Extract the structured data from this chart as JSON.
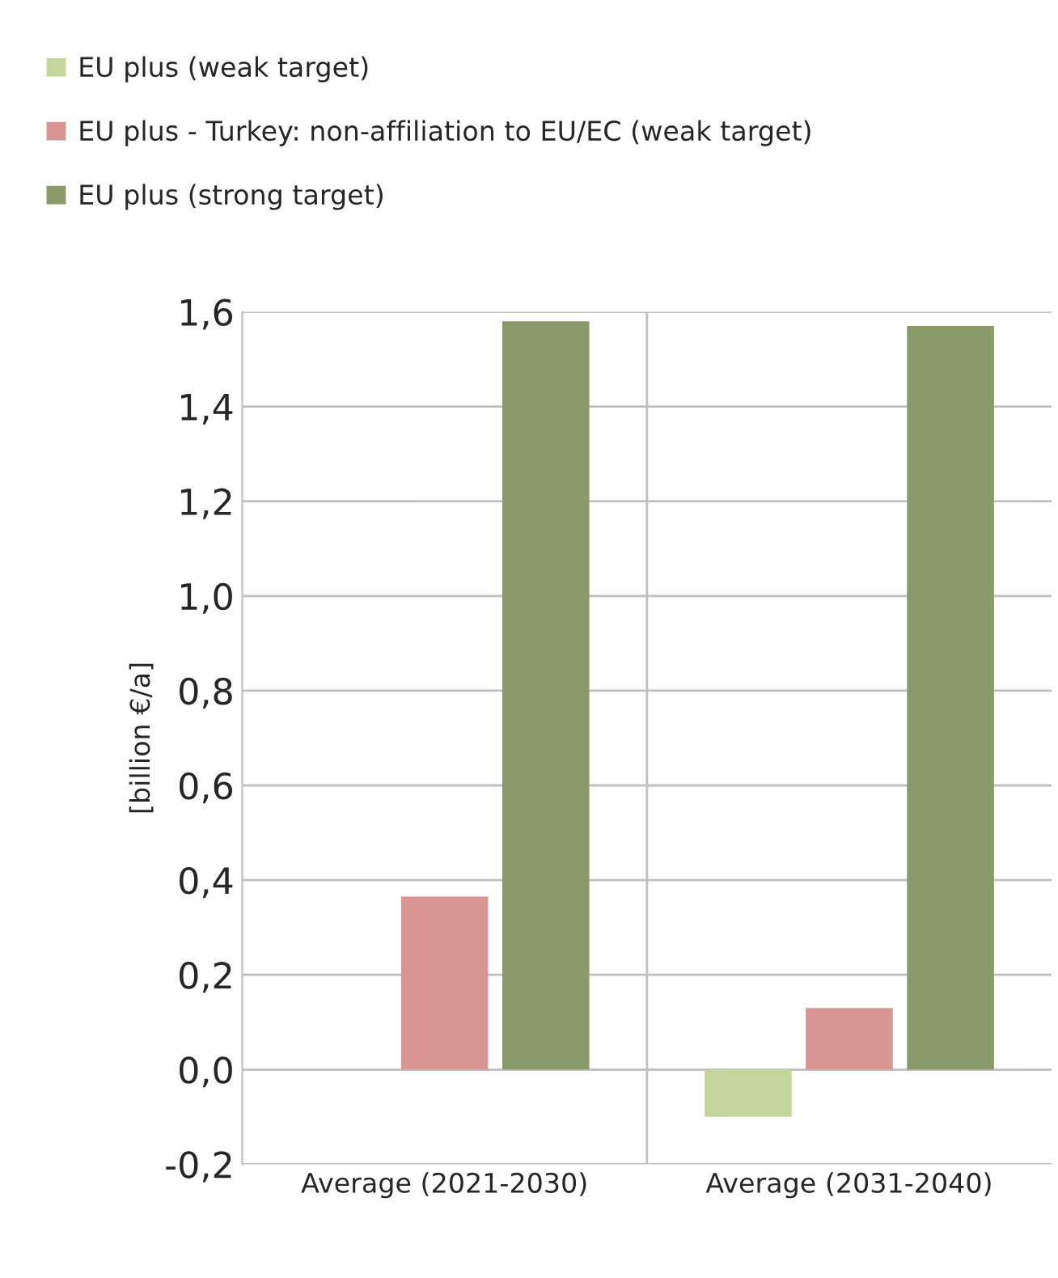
{
  "chart_data": {
    "type": "bar",
    "ylabel": "[billion €/a]",
    "categories": [
      "Average (2021-2030)",
      "Average (2031-2040)"
    ],
    "series": [
      {
        "name": "EU plus (weak target)",
        "color": "#c3d69b",
        "values": [
          null,
          -0.1
        ]
      },
      {
        "name": "EU plus - Turkey: non-affiliation to EU/EC (weak target)",
        "color": "#d99594",
        "values": [
          0.365,
          0.13
        ]
      },
      {
        "name": "EU plus (strong target)",
        "color": "#8a9a6a",
        "values": [
          1.58,
          1.57
        ]
      }
    ],
    "ylim": [
      -0.2,
      1.6
    ],
    "yticks": [
      {
        "value": -0.2,
        "label": "-0,2"
      },
      {
        "value": 0,
        "label": "0,0"
      },
      {
        "value": 0.2,
        "label": "0,2"
      },
      {
        "value": 0.4,
        "label": "0,4"
      },
      {
        "value": 0.6,
        "label": "0,6"
      },
      {
        "value": 0.8,
        "label": "0,8"
      },
      {
        "value": 1.0,
        "label": "1,0"
      },
      {
        "value": 1.2,
        "label": "1,2"
      },
      {
        "value": 1.4,
        "label": "1,4"
      },
      {
        "value": 1.6,
        "label": "1,6"
      }
    ],
    "grid": true,
    "legend": "top left"
  }
}
